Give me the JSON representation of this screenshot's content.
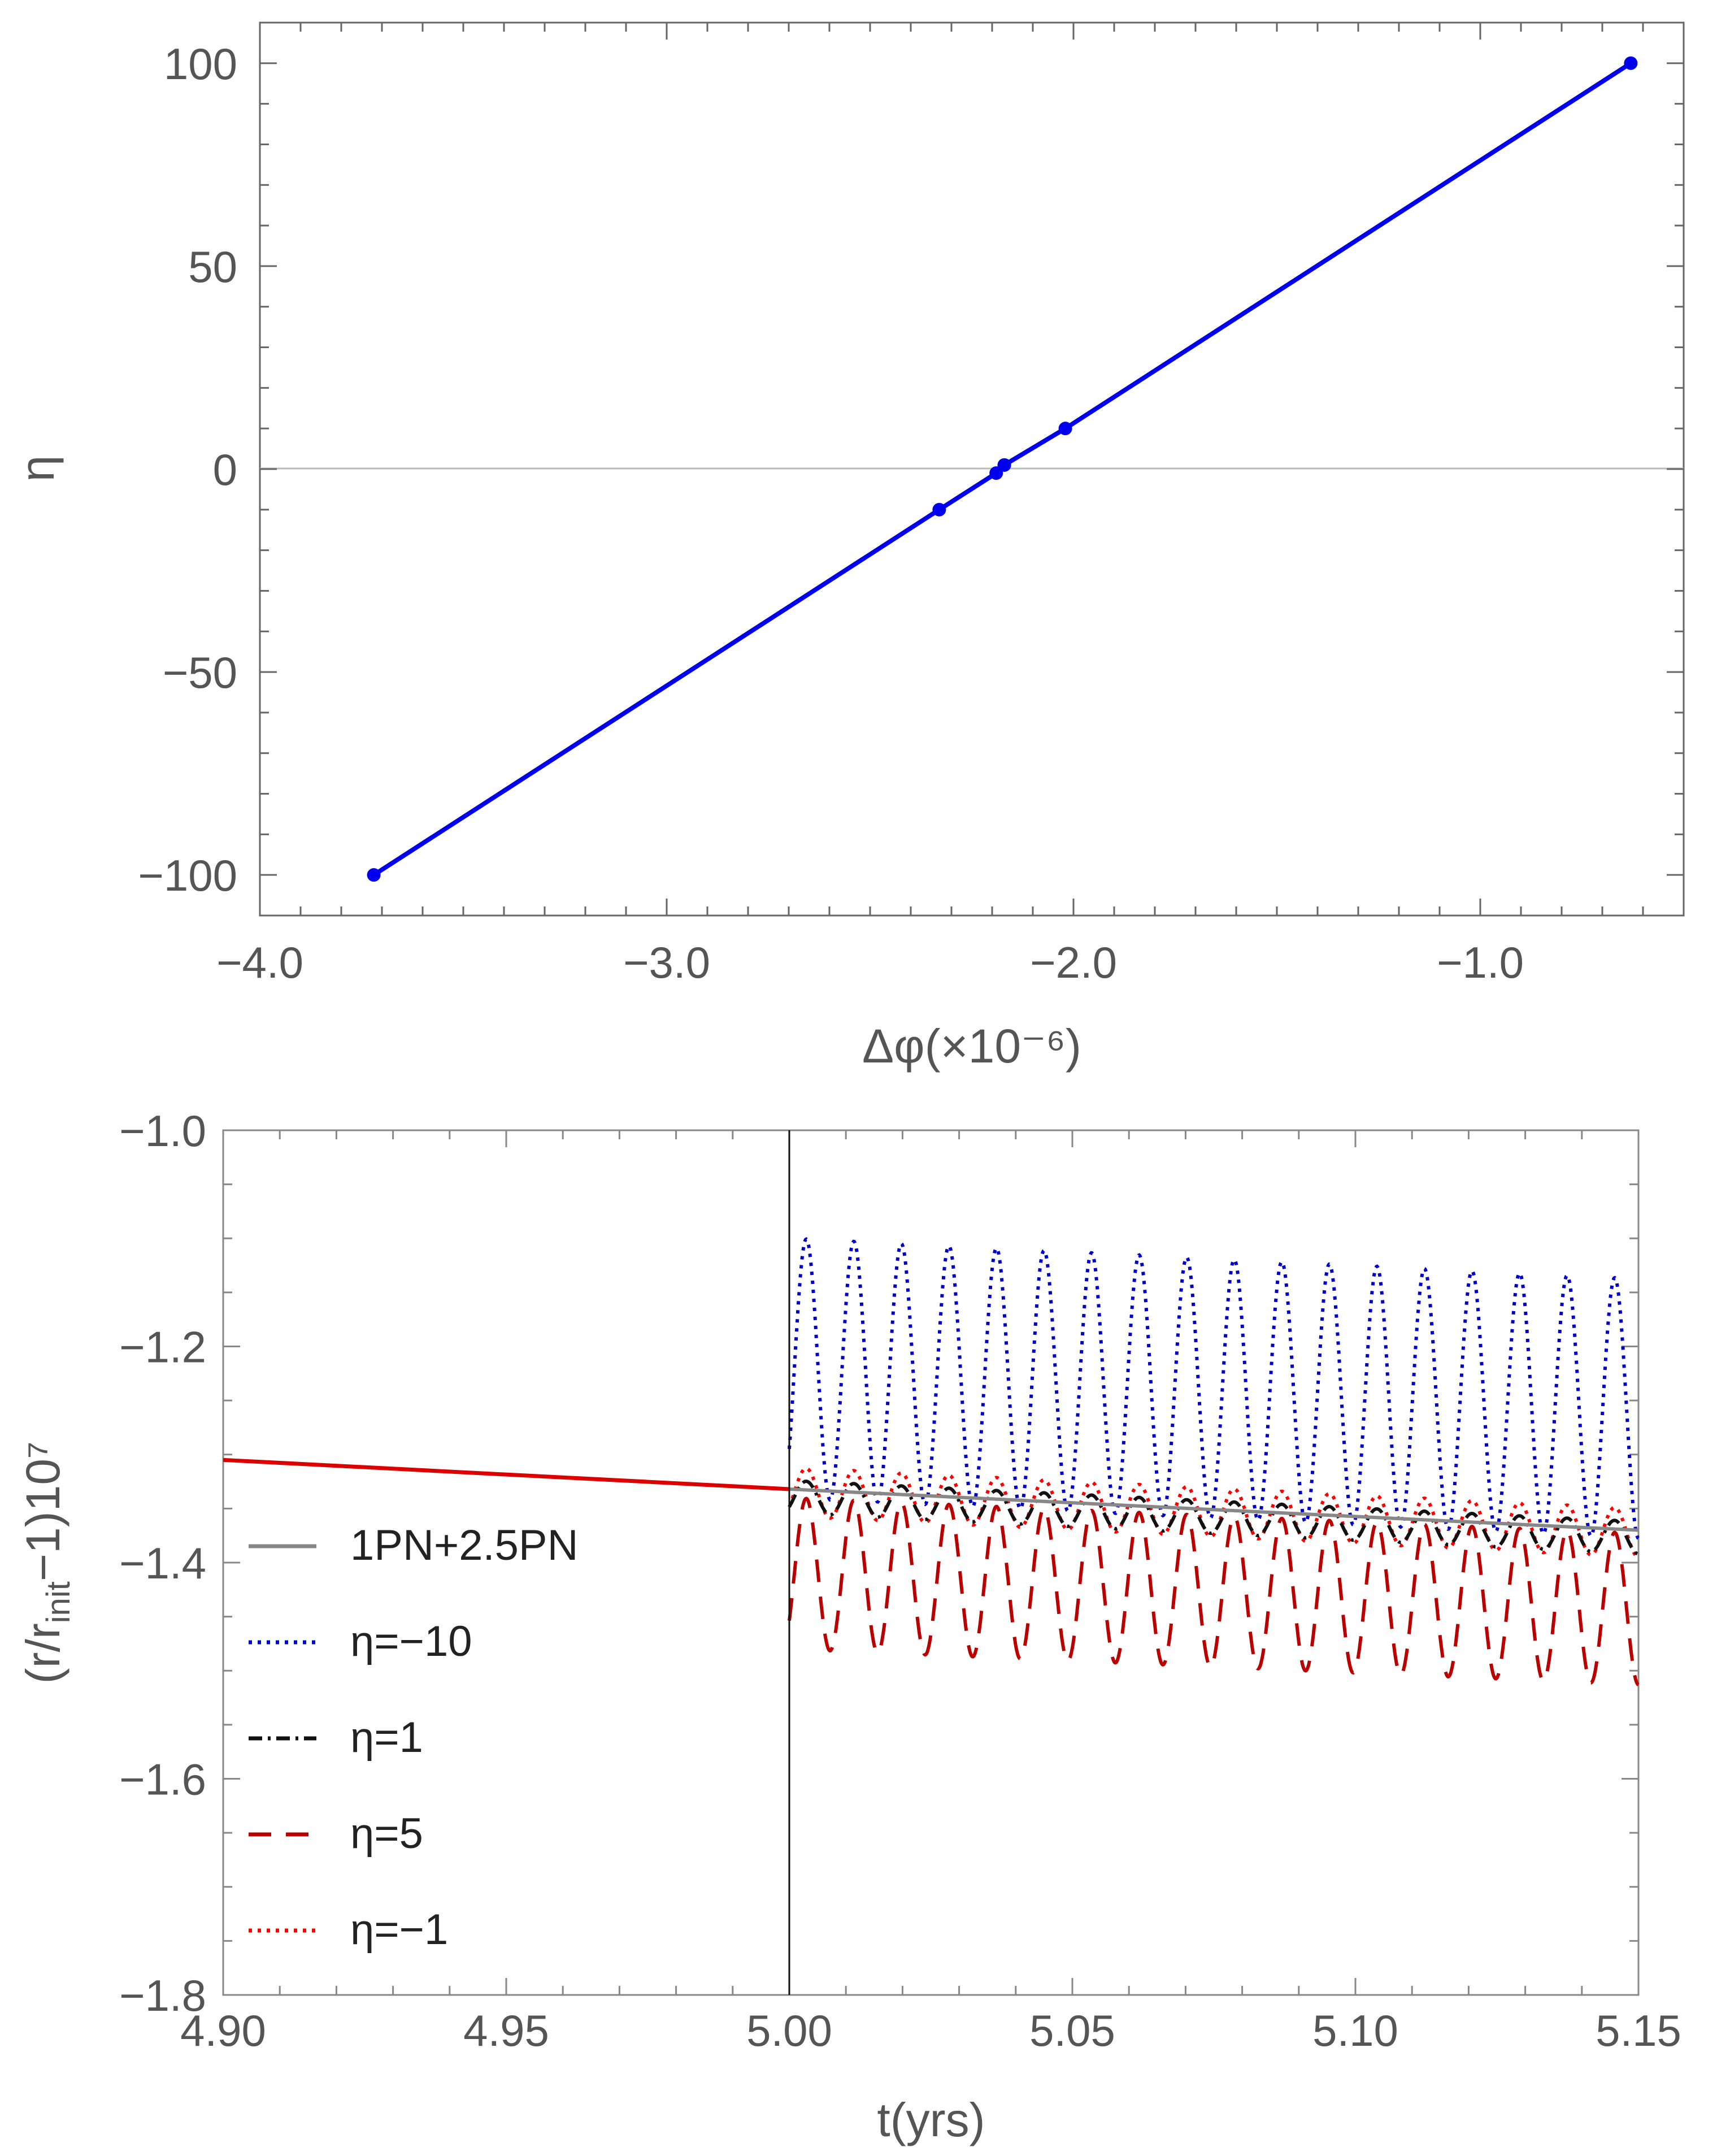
{
  "chart_data": [
    {
      "type": "line",
      "xlabel": "Δφ(×10⁻⁶)",
      "ylabel": "η",
      "xlim": [
        -4.0,
        -0.5
      ],
      "ylim": [
        -110,
        110
      ],
      "xticks": [
        "−4.0",
        "−3.0",
        "−2.0",
        "−1.0"
      ],
      "xtick_values": [
        -4.0,
        -3.0,
        -2.0,
        -1.0
      ],
      "yticks": [
        "−100",
        "−50",
        "0",
        "50",
        "100"
      ],
      "ytick_values": [
        -100,
        -50,
        0,
        50,
        100
      ],
      "grid": false,
      "series": [
        {
          "color": "#0000ee",
          "marker": "circle",
          "x": [
            -3.72,
            -2.33,
            -2.19,
            -2.17,
            -2.17,
            -2.02,
            -0.63
          ],
          "y": [
            -100,
            -10,
            -1,
            1,
            1,
            10,
            100
          ]
        }
      ]
    },
    {
      "type": "line",
      "xlabel": "t(yrs)",
      "ylabel": "(r/r_init−1)10⁷",
      "xlim": [
        4.9,
        5.15
      ],
      "ylim": [
        -1.8,
        -1.0
      ],
      "xticks": [
        "4.90",
        "4.95",
        "5.00",
        "5.05",
        "5.10",
        "5.15"
      ],
      "xtick_values": [
        4.9,
        4.95,
        5.0,
        5.05,
        5.1,
        5.15
      ],
      "yticks": [
        "−1.0",
        "−1.2",
        "−1.4",
        "−1.6",
        "−1.8"
      ],
      "ytick_values": [
        -1.0,
        -1.2,
        -1.4,
        -1.6,
        -1.8
      ],
      "vline_x": 5.0,
      "legend_position": "left",
      "series": [
        {
          "name": "1PN+2.5PN",
          "color": "#888888",
          "style": "solid",
          "base_start": -1.332,
          "base_end": -1.37
        },
        {
          "name": "η=−10",
          "color": "#0000cc",
          "style": "dotted",
          "min": -1.34,
          "max": -1.1,
          "period": 0.0084
        },
        {
          "name": "η=1",
          "color": "#111111",
          "style": "dashdot",
          "min_offset": -0.022,
          "max_offset": 0.008,
          "period": 0.0084
        },
        {
          "name": "η=5",
          "color": "#bb0000",
          "style": "dashed",
          "min": -1.48,
          "max": -1.34,
          "period": 0.0084
        },
        {
          "name": "η=−1",
          "color": "#ff0000",
          "style": "dotted",
          "min_offset": -0.025,
          "max_offset": 0.02,
          "period": 0.0084
        }
      ],
      "pre_segment": {
        "x": [
          4.9,
          5.0
        ],
        "y": [
          -1.305,
          -1.332
        ],
        "color": "#dd0000"
      }
    }
  ],
  "legend": {
    "items": [
      "1PN+2.5PN",
      "η=−10",
      "η=1",
      "η=5",
      "η=−1"
    ]
  }
}
